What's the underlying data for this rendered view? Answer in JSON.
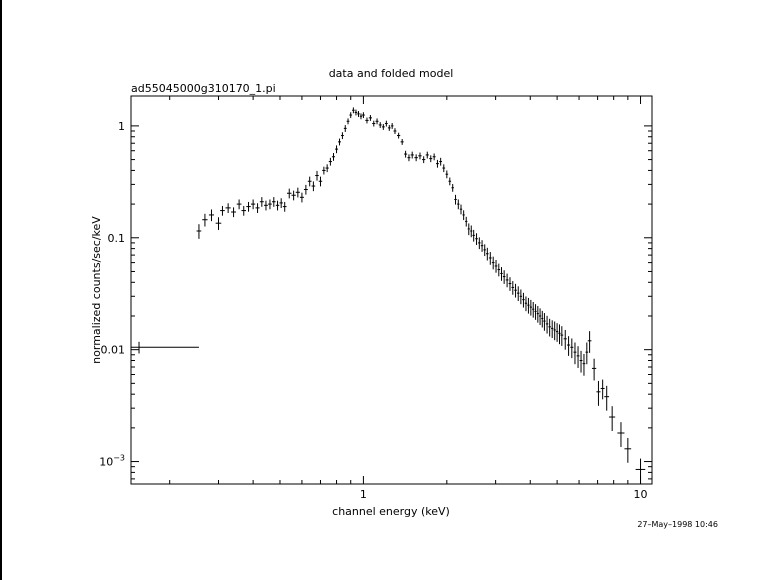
{
  "chart_data": {
    "type": "scatter",
    "title": "data and folded model",
    "subtitle": "ad55045000g310170_1.pi",
    "xlabel": "channel energy (keV)",
    "ylabel": "normalized counts/sec/keV",
    "xscale": "log",
    "yscale": "log",
    "xlim": [
      0.145,
      11.0
    ],
    "ylim": [
      0.00063,
      1.85
    ],
    "x_ticks": [
      {
        "value": 1,
        "label": "1"
      },
      {
        "value": 10,
        "label": "10"
      }
    ],
    "y_ticks": [
      {
        "value": 0.001,
        "label": "10",
        "exp": "−3"
      },
      {
        "value": 0.01,
        "label": "0.01",
        "exp": ""
      },
      {
        "value": 0.1,
        "label": "0.1",
        "exp": ""
      },
      {
        "value": 1,
        "label": "1",
        "exp": ""
      }
    ],
    "timestamp": "27–May–1998 10:46",
    "grid": false,
    "series": [
      {
        "x": [
          0.155,
          0.255,
          0.268,
          0.283,
          0.3,
          0.31,
          0.325,
          0.34,
          0.356,
          0.37,
          0.385,
          0.4,
          0.415,
          0.43,
          0.445,
          0.46,
          0.475,
          0.49,
          0.505,
          0.52,
          0.54,
          0.56,
          0.58,
          0.6,
          0.62,
          0.64,
          0.66,
          0.68,
          0.7,
          0.72,
          0.74,
          0.76,
          0.78,
          0.8,
          0.82,
          0.84,
          0.86,
          0.88,
          0.9,
          0.92,
          0.94,
          0.96,
          0.98,
          1.0,
          1.03,
          1.06,
          1.09,
          1.12,
          1.15,
          1.18,
          1.21,
          1.24,
          1.27,
          1.3,
          1.34,
          1.38,
          1.42,
          1.46,
          1.5,
          1.55,
          1.6,
          1.65,
          1.7,
          1.75,
          1.8,
          1.85,
          1.9,
          1.95,
          2.0,
          2.05,
          2.1,
          2.15,
          2.2,
          2.25,
          2.3,
          2.35,
          2.4,
          2.45,
          2.5,
          2.56,
          2.62,
          2.68,
          2.74,
          2.8,
          2.87,
          2.94,
          3.01,
          3.08,
          3.15,
          3.22,
          3.3,
          3.38,
          3.46,
          3.54,
          3.62,
          3.7,
          3.78,
          3.86,
          3.94,
          4.02,
          4.1,
          4.18,
          4.26,
          4.34,
          4.42,
          4.5,
          4.6,
          4.7,
          4.8,
          4.9,
          5.0,
          5.1,
          5.2,
          5.35,
          5.5,
          5.65,
          5.8,
          5.95,
          6.1,
          6.25,
          6.4,
          6.55,
          6.8,
          7.05,
          7.3,
          7.55,
          7.9,
          8.5,
          9.0,
          10.0
        ],
        "y": [
          0.0105,
          0.115,
          0.145,
          0.16,
          0.135,
          0.175,
          0.185,
          0.17,
          0.2,
          0.175,
          0.19,
          0.2,
          0.185,
          0.21,
          0.195,
          0.2,
          0.21,
          0.195,
          0.205,
          0.19,
          0.25,
          0.24,
          0.255,
          0.23,
          0.27,
          0.32,
          0.29,
          0.36,
          0.32,
          0.4,
          0.42,
          0.48,
          0.53,
          0.62,
          0.72,
          0.82,
          0.95,
          1.1,
          1.25,
          1.38,
          1.32,
          1.28,
          1.22,
          1.25,
          1.12,
          1.18,
          1.05,
          1.1,
          1.02,
          0.98,
          1.05,
          0.96,
          1.0,
          0.9,
          0.82,
          0.72,
          0.56,
          0.52,
          0.55,
          0.52,
          0.54,
          0.5,
          0.55,
          0.51,
          0.53,
          0.46,
          0.48,
          0.42,
          0.37,
          0.32,
          0.28,
          0.22,
          0.2,
          0.18,
          0.16,
          0.14,
          0.12,
          0.115,
          0.105,
          0.098,
          0.09,
          0.085,
          0.078,
          0.072,
          0.066,
          0.06,
          0.056,
          0.052,
          0.048,
          0.045,
          0.042,
          0.039,
          0.036,
          0.034,
          0.032,
          0.03,
          0.028,
          0.026,
          0.025,
          0.024,
          0.023,
          0.022,
          0.021,
          0.02,
          0.019,
          0.018,
          0.017,
          0.016,
          0.0155,
          0.015,
          0.0145,
          0.014,
          0.0135,
          0.0125,
          0.011,
          0.0105,
          0.0095,
          0.0088,
          0.008,
          0.0075,
          0.0095,
          0.012,
          0.0068,
          0.0042,
          0.0045,
          0.0038,
          0.0025,
          0.0018,
          0.0013,
          0.00085
        ],
        "xerr_lo": [
          0.1,
          0.005,
          0.006,
          0.006,
          0.007,
          0.006,
          0.007,
          0.007,
          0.007,
          0.007,
          0.007,
          0.007,
          0.007,
          0.007,
          0.007,
          0.007,
          0.007,
          0.007,
          0.007,
          0.008,
          0.01,
          0.01,
          0.01,
          0.01,
          0.01,
          0.01,
          0.01,
          0.01,
          0.01,
          0.01,
          0.01,
          0.01,
          0.01,
          0.01,
          0.01,
          0.01,
          0.01,
          0.01,
          0.01,
          0.01,
          0.01,
          0.01,
          0.01,
          0.012,
          0.014,
          0.014,
          0.014,
          0.014,
          0.014,
          0.014,
          0.014,
          0.014,
          0.014,
          0.016,
          0.018,
          0.018,
          0.018,
          0.018,
          0.02,
          0.022,
          0.022,
          0.022,
          0.022,
          0.022,
          0.022,
          0.022,
          0.022,
          0.022,
          0.022,
          0.022,
          0.022,
          0.022,
          0.022,
          0.022,
          0.022,
          0.022,
          0.022,
          0.022,
          0.025,
          0.028,
          0.028,
          0.028,
          0.028,
          0.03,
          0.033,
          0.033,
          0.033,
          0.033,
          0.033,
          0.035,
          0.038,
          0.038,
          0.038,
          0.038,
          0.038,
          0.038,
          0.038,
          0.038,
          0.038,
          0.038,
          0.038,
          0.038,
          0.038,
          0.038,
          0.038,
          0.045,
          0.048,
          0.048,
          0.048,
          0.048,
          0.048,
          0.048,
          0.06,
          0.07,
          0.07,
          0.07,
          0.07,
          0.07,
          0.07,
          0.07,
          0.07,
          0.1,
          0.12,
          0.12,
          0.12,
          0.15,
          0.2,
          0.25,
          0.25,
          0.4
        ],
        "xerr_hi": [
          0.1,
          0.005,
          0.006,
          0.006,
          0.007,
          0.006,
          0.007,
          0.007,
          0.007,
          0.007,
          0.007,
          0.007,
          0.007,
          0.007,
          0.007,
          0.007,
          0.007,
          0.007,
          0.007,
          0.008,
          0.01,
          0.01,
          0.01,
          0.01,
          0.01,
          0.01,
          0.01,
          0.01,
          0.01,
          0.01,
          0.01,
          0.01,
          0.01,
          0.01,
          0.01,
          0.01,
          0.01,
          0.01,
          0.01,
          0.01,
          0.01,
          0.01,
          0.01,
          0.012,
          0.014,
          0.014,
          0.014,
          0.014,
          0.014,
          0.014,
          0.014,
          0.014,
          0.014,
          0.016,
          0.018,
          0.018,
          0.018,
          0.018,
          0.02,
          0.022,
          0.022,
          0.022,
          0.022,
          0.022,
          0.022,
          0.022,
          0.022,
          0.022,
          0.022,
          0.022,
          0.022,
          0.022,
          0.022,
          0.022,
          0.022,
          0.022,
          0.022,
          0.022,
          0.025,
          0.028,
          0.028,
          0.028,
          0.028,
          0.03,
          0.033,
          0.033,
          0.033,
          0.033,
          0.033,
          0.035,
          0.038,
          0.038,
          0.038,
          0.038,
          0.038,
          0.038,
          0.038,
          0.038,
          0.038,
          0.038,
          0.038,
          0.038,
          0.038,
          0.038,
          0.038,
          0.045,
          0.048,
          0.048,
          0.048,
          0.048,
          0.048,
          0.048,
          0.06,
          0.07,
          0.07,
          0.07,
          0.07,
          0.07,
          0.07,
          0.07,
          0.07,
          0.1,
          0.12,
          0.12,
          0.12,
          0.15,
          0.2,
          0.25,
          0.25,
          0.4
        ],
        "yerr_frac": [
          0.12,
          0.15,
          0.13,
          0.12,
          0.13,
          0.1,
          0.1,
          0.1,
          0.1,
          0.1,
          0.1,
          0.1,
          0.1,
          0.1,
          0.1,
          0.1,
          0.1,
          0.1,
          0.1,
          0.1,
          0.1,
          0.1,
          0.1,
          0.1,
          0.1,
          0.1,
          0.1,
          0.1,
          0.1,
          0.08,
          0.08,
          0.08,
          0.08,
          0.08,
          0.07,
          0.07,
          0.07,
          0.06,
          0.06,
          0.06,
          0.06,
          0.06,
          0.06,
          0.06,
          0.06,
          0.06,
          0.06,
          0.06,
          0.06,
          0.06,
          0.06,
          0.06,
          0.06,
          0.06,
          0.06,
          0.06,
          0.07,
          0.07,
          0.07,
          0.07,
          0.07,
          0.07,
          0.07,
          0.07,
          0.07,
          0.08,
          0.08,
          0.08,
          0.08,
          0.08,
          0.08,
          0.1,
          0.1,
          0.1,
          0.1,
          0.1,
          0.12,
          0.12,
          0.12,
          0.12,
          0.12,
          0.12,
          0.12,
          0.13,
          0.13,
          0.13,
          0.13,
          0.13,
          0.14,
          0.14,
          0.14,
          0.14,
          0.14,
          0.14,
          0.15,
          0.15,
          0.15,
          0.15,
          0.16,
          0.16,
          0.16,
          0.16,
          0.17,
          0.17,
          0.17,
          0.18,
          0.18,
          0.18,
          0.18,
          0.19,
          0.19,
          0.2,
          0.2,
          0.2,
          0.2,
          0.2,
          0.22,
          0.22,
          0.22,
          0.22,
          0.22,
          0.22,
          0.22,
          0.25,
          0.2,
          0.25,
          0.25,
          0.25,
          0.25,
          0.25
        ]
      }
    ]
  }
}
